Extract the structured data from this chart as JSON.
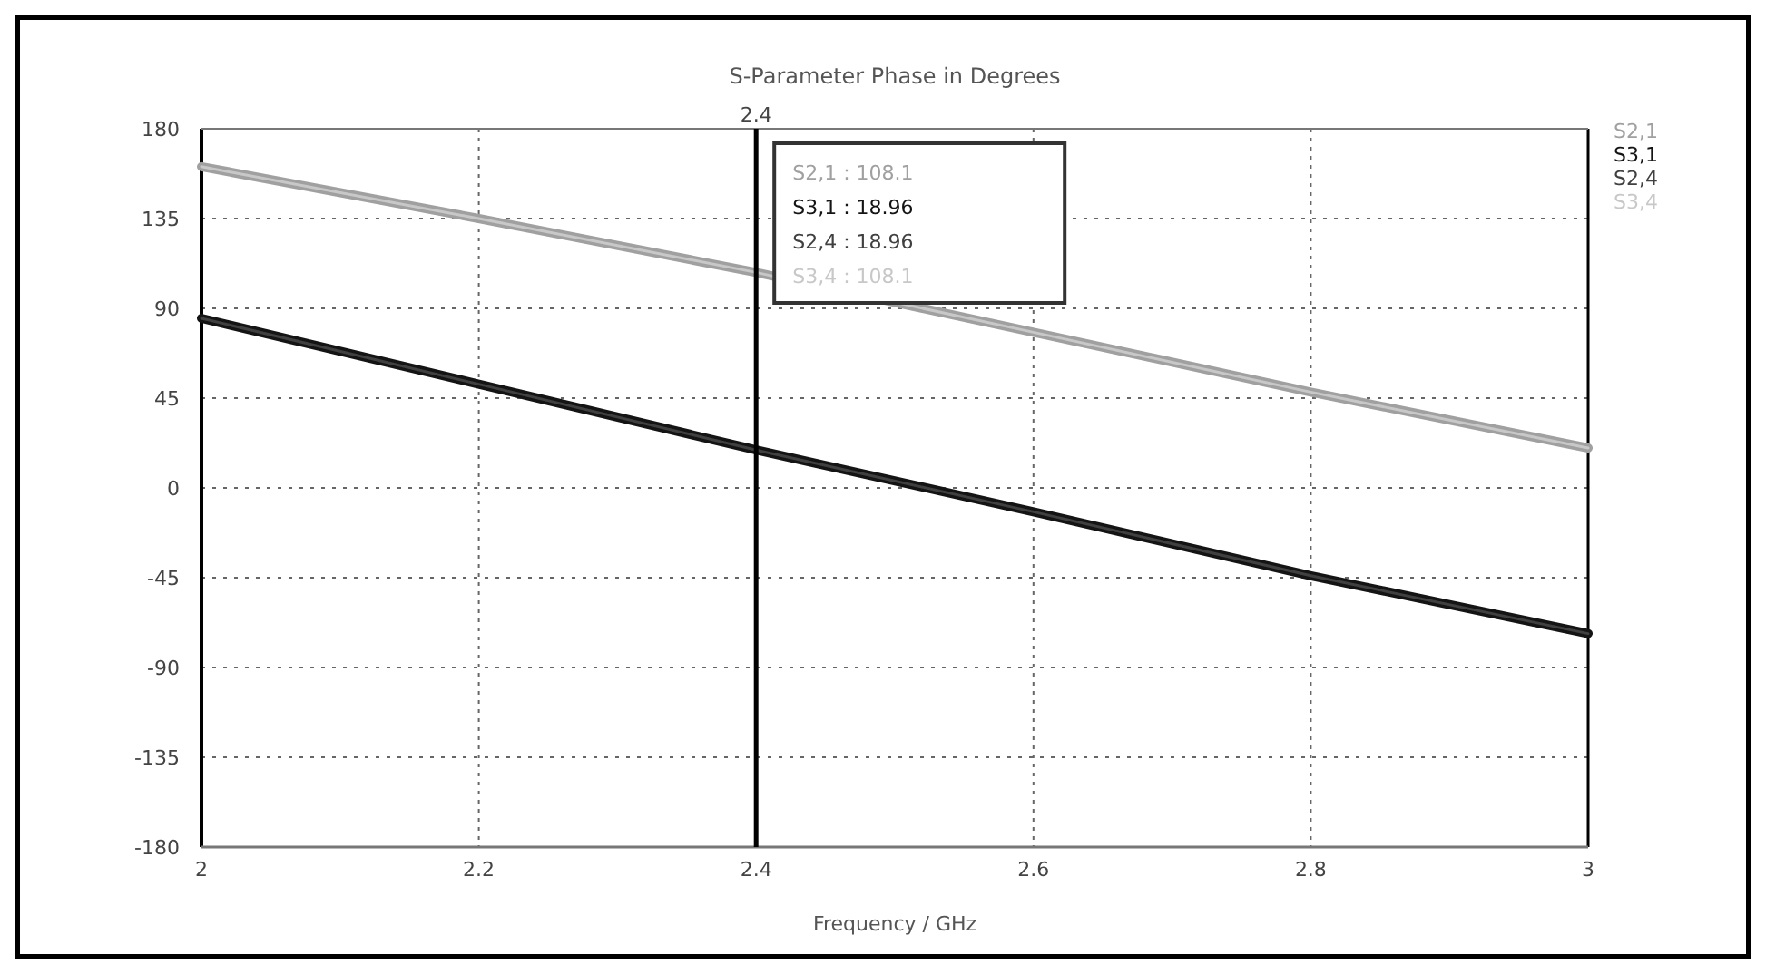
{
  "chart_data": {
    "type": "line",
    "title": "S-Parameter Phase in Degrees",
    "xlabel": "Frequency / GHz",
    "x": [
      2,
      2.2,
      2.4,
      2.6,
      2.8,
      3
    ],
    "series": [
      {
        "name": "S2,1",
        "color": "#a0a0a0",
        "values": [
          161,
          135,
          108,
          78,
          48,
          20
        ]
      },
      {
        "name": "S3,1",
        "color": "#141414",
        "values": [
          85,
          52,
          19,
          -12,
          -44,
          -73
        ]
      },
      {
        "name": "S2,4",
        "color": "#404040",
        "values": [
          85,
          52,
          19,
          -12,
          -44,
          -73
        ]
      },
      {
        "name": "S3,4",
        "color": "#c8c8c8",
        "values": [
          161,
          135,
          108,
          78,
          48,
          20
        ]
      }
    ],
    "xlim": [
      2,
      3
    ],
    "xticks": [
      2,
      2.2,
      2.4,
      2.6,
      2.8,
      3
    ],
    "ylim": [
      -180,
      180
    ],
    "yticks": [
      -180,
      -135,
      -90,
      -45,
      0,
      45,
      90,
      135,
      180
    ],
    "grid": true,
    "legend": "top right",
    "marker": "none",
    "line_style": "solid",
    "ref_lines": [
      {
        "axis": "x",
        "value": 2.4,
        "label": "2.4",
        "color": "#000000"
      }
    ],
    "annotations": [
      "S2,1 : 108.1",
      "S3,1 : 18.96",
      "S2,4 : 18.96",
      "S3,4 : 108.1"
    ]
  }
}
